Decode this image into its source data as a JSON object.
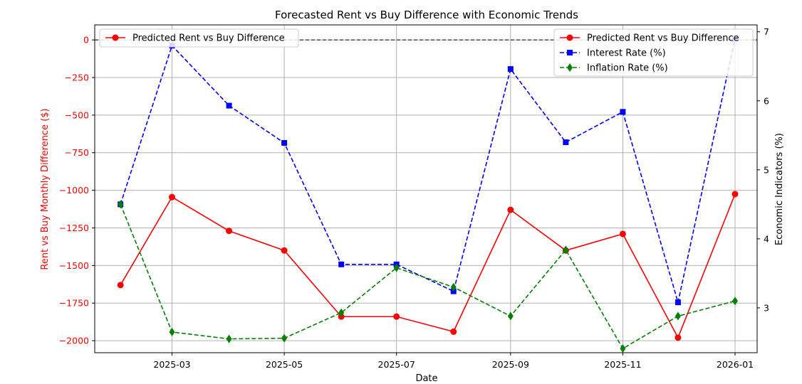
{
  "chart_data": {
    "type": "line",
    "title": "Forecasted Rent vs Buy Difference with Economic Trends",
    "xlabel": "Date",
    "ylabel": "Rent vs Buy Monthly Difference ($)",
    "y2label": "Economic Indicators (%)",
    "x": [
      "2025-02-01",
      "2025-03-01",
      "2025-04-01",
      "2025-05-01",
      "2025-06-01",
      "2025-07-01",
      "2025-08-01",
      "2025-09-01",
      "2025-10-01",
      "2025-11-01",
      "2025-12-01",
      "2026-01-01"
    ],
    "x_ticks": [
      "2025-03-01",
      "2025-05-01",
      "2025-07-01",
      "2025-09-01",
      "2025-11-01",
      "2026-01-01"
    ],
    "x_tick_labels": [
      "2025-03",
      "2025-05",
      "2025-07",
      "2025-09",
      "2025-11",
      "2026-01"
    ],
    "y_ticks": [
      0,
      -250,
      -500,
      -750,
      -1000,
      -1250,
      -1500,
      -1750,
      -2000
    ],
    "y_tick_labels": [
      "0",
      "−250",
      "−500",
      "−750",
      "−1000",
      "−1250",
      "−1500",
      "−1750",
      "−2000"
    ],
    "y2_ticks": [
      3,
      4,
      5,
      6,
      7
    ],
    "y2_tick_labels": [
      "3",
      "4",
      "5",
      "6",
      "7"
    ],
    "ylim": [
      -2080,
      100
    ],
    "y2lim": [
      2.35,
      7.1
    ],
    "xlim": [
      "2025-01-18",
      "2026-01-13"
    ],
    "grid": true,
    "reference_line_y": 0,
    "series": [
      {
        "name": "Predicted Rent vs Buy Difference",
        "axis": "left",
        "color": "#ff0000",
        "style": "solid",
        "marker": "circle",
        "values": [
          -1630,
          -1045,
          -1270,
          -1400,
          -1840,
          -1840,
          -1940,
          -1130,
          -1400,
          -1290,
          -1980,
          -1025
        ]
      },
      {
        "name": "Interest Rate (%)",
        "axis": "right",
        "color": "#0000ff",
        "style": "dashed",
        "marker": "square",
        "values": [
          4.5,
          6.8,
          5.93,
          5.39,
          3.63,
          3.63,
          3.24,
          6.46,
          5.4,
          5.84,
          3.08,
          6.9
        ]
      },
      {
        "name": "Inflation Rate (%)",
        "axis": "right",
        "color": "#008000",
        "style": "dashed",
        "marker": "diamond",
        "values": [
          4.5,
          2.65,
          2.55,
          2.56,
          2.93,
          3.58,
          3.3,
          2.88,
          3.84,
          2.41,
          2.88,
          3.1
        ]
      }
    ],
    "legend_left": [
      "Predicted Rent vs Buy Difference"
    ],
    "legend_left_placement": "upper-left",
    "legend_right": [
      "Predicted Rent vs Buy Difference",
      "Interest Rate (%)",
      "Inflation Rate (%)"
    ],
    "legend_right_placement": "upper-right",
    "left_axis_color": "#ff0000"
  }
}
